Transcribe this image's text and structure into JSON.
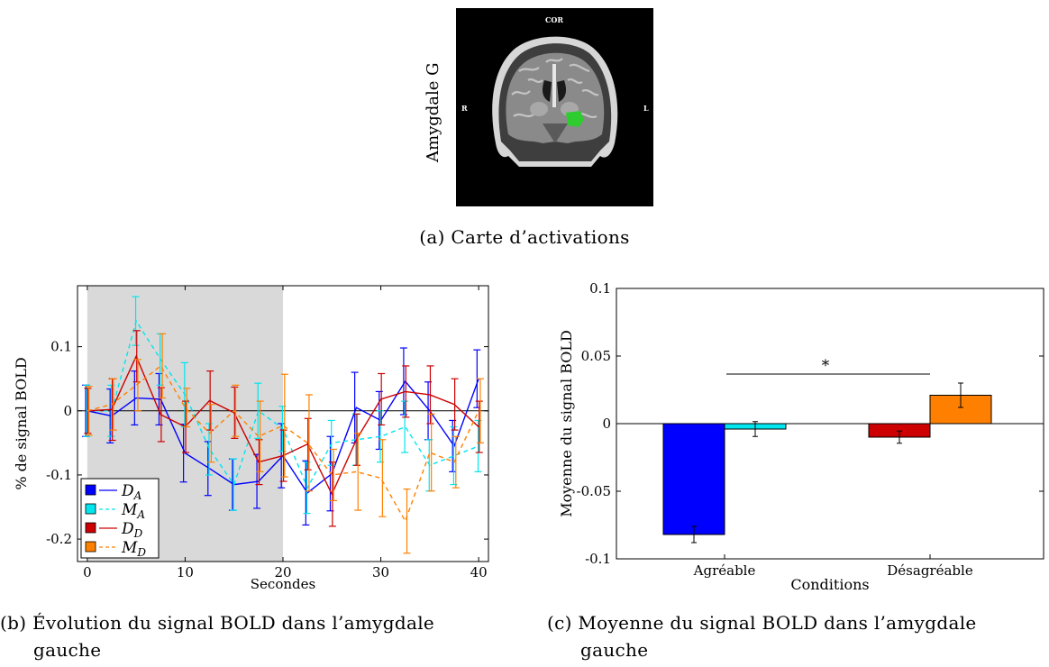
{
  "figure": {
    "panel_a": {
      "ylabel": "Amygdale G",
      "orientation_top": "COR",
      "orientation_left": "R",
      "orientation_right": "L",
      "caption_label": "(a)",
      "caption_text": "Carte d’activations",
      "highlight_color": "#2ecc2e"
    },
    "panel_b": {
      "caption_label": "(b)",
      "caption_line1": "Évolution du signal BOLD dans l’amygdale",
      "caption_line2": "gauche"
    },
    "panel_c": {
      "caption_label": "(c)",
      "caption_line1": "Moyenne du signal BOLD dans l’amygdale",
      "caption_line2": "gauche"
    }
  },
  "chart_data": [
    {
      "type": "line",
      "xlabel": "Secondes",
      "ylabel": "% de signal BOLD",
      "xlim": [
        -1,
        41
      ],
      "ylim": [
        -0.235,
        0.195
      ],
      "xticks": [
        0,
        10,
        20,
        30,
        40
      ],
      "xtick_labels": [
        "0",
        "10",
        "20",
        "30",
        "40"
      ],
      "yticks": [
        0.1,
        0,
        -0.1,
        -0.2
      ],
      "ytick_labels": [
        "0.1",
        "0",
        "-0.1",
        "-0.2"
      ],
      "shaded_region": [
        0,
        20
      ],
      "shaded_color": "#d9d9d9",
      "zero_line": true,
      "legend_position": "bottom-left",
      "x": [
        0,
        2.5,
        5,
        7.5,
        10,
        12.5,
        15,
        17.5,
        20,
        22.5,
        25,
        27.5,
        30,
        32.5,
        35,
        37.5,
        40
      ],
      "series": [
        {
          "name": "D",
          "subscript": "A",
          "color": "#0000ff",
          "dashed": false,
          "values": [
            0.0,
            -0.008,
            0.02,
            0.018,
            -0.066,
            -0.09,
            -0.115,
            -0.11,
            -0.07,
            -0.128,
            -0.098,
            0.005,
            -0.015,
            0.046,
            0.0,
            -0.055,
            0.05
          ],
          "errors": [
            0.04,
            0.042,
            0.042,
            0.04,
            0.045,
            0.042,
            0.04,
            0.042,
            0.05,
            0.05,
            0.058,
            0.055,
            0.045,
            0.052,
            0.045,
            0.04,
            0.045
          ]
        },
        {
          "name": "M",
          "subscript": "A",
          "color": "#00e5ee",
          "dashed": true,
          "values": [
            0.0,
            0.0,
            0.14,
            0.08,
            0.025,
            -0.06,
            -0.115,
            0.0,
            -0.028,
            -0.12,
            -0.05,
            -0.045,
            -0.04,
            -0.025,
            -0.085,
            -0.07,
            -0.055
          ],
          "errors": [
            0.04,
            0.04,
            0.038,
            0.04,
            0.05,
            0.04,
            0.04,
            0.043,
            0.035,
            0.04,
            0.035,
            0.04,
            0.04,
            0.04,
            0.04,
            0.045,
            0.04
          ]
        },
        {
          "name": "D",
          "subscript": "D",
          "color": "#cc0000",
          "dashed": false,
          "values": [
            0.0,
            0.002,
            0.085,
            -0.006,
            -0.025,
            0.016,
            -0.003,
            -0.08,
            -0.07,
            -0.052,
            -0.13,
            -0.045,
            0.018,
            0.03,
            0.025,
            0.01,
            -0.025
          ],
          "errors": [
            0.035,
            0.048,
            0.04,
            0.042,
            0.04,
            0.046,
            0.04,
            0.035,
            0.04,
            0.04,
            0.05,
            0.04,
            0.04,
            0.04,
            0.045,
            0.04,
            0.04
          ]
        },
        {
          "name": "M",
          "subscript": "D",
          "color": "#ff8000",
          "dashed": true,
          "values": [
            0.0,
            0.01,
            0.04,
            0.07,
            0.005,
            -0.035,
            0.0,
            -0.04,
            -0.023,
            -0.05,
            -0.1,
            -0.095,
            -0.105,
            -0.172,
            -0.065,
            -0.08,
            0.0
          ],
          "errors": [
            0.038,
            0.04,
            0.04,
            0.05,
            0.03,
            0.045,
            0.04,
            0.055,
            0.08,
            0.075,
            0.04,
            0.06,
            0.06,
            0.05,
            0.06,
            0.04,
            0.05
          ]
        }
      ]
    },
    {
      "type": "bar",
      "xlabel": "Conditions",
      "ylabel": "Moyenne du signal BOLD",
      "ylim": [
        -0.1,
        0.1
      ],
      "yticks": [
        0.1,
        0.05,
        0,
        -0.05,
        -0.1
      ],
      "ytick_labels": [
        "0.1",
        "0.05",
        "0",
        "-0.05",
        "-0.1"
      ],
      "categories": [
        "Agréable",
        "Désagréable"
      ],
      "significance_marker": "*",
      "bars": [
        {
          "category": "Agréable",
          "color": "#0000ff",
          "value": -0.082,
          "error": 0.006
        },
        {
          "category": "Agréable",
          "color": "#00e5ee",
          "value": -0.004,
          "error": 0.0055
        },
        {
          "category": "Désagréable",
          "color": "#cc0000",
          "value": -0.01,
          "error": 0.0045
        },
        {
          "category": "Désagréable",
          "color": "#ff8000",
          "value": 0.021,
          "error": 0.009
        }
      ]
    }
  ]
}
